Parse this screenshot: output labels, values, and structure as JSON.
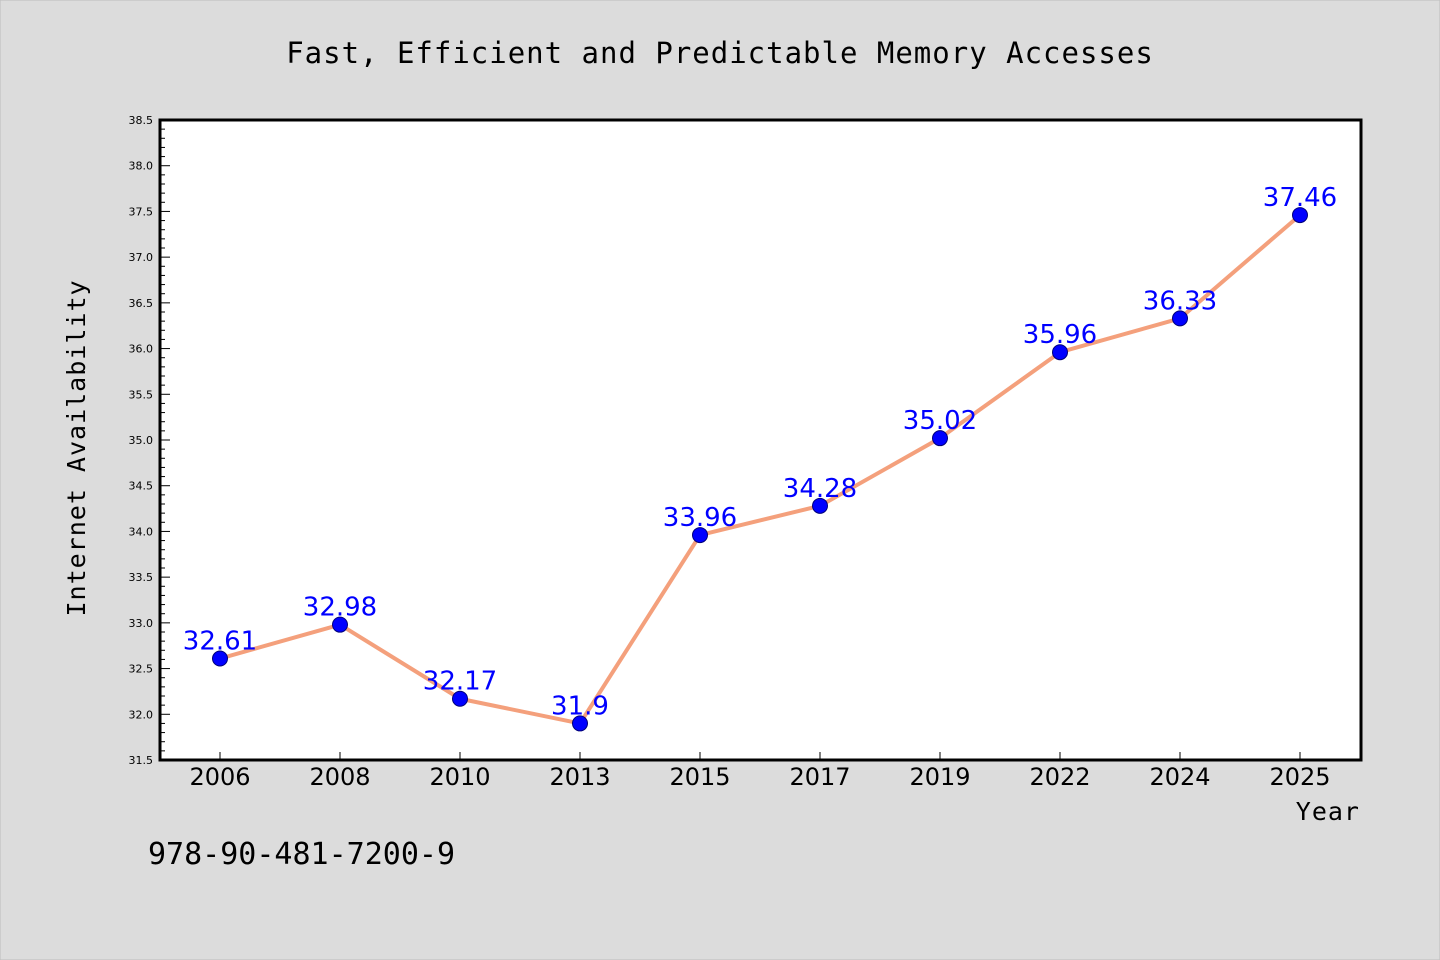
{
  "chart_data": {
    "type": "line",
    "title": "Fast, Efficient and Predictable Memory Accesses",
    "xlabel": "Year",
    "ylabel": "Internet Availability",
    "categories": [
      "2006",
      "2008",
      "2010",
      "2013",
      "2015",
      "2017",
      "2019",
      "2022",
      "2024",
      "2025"
    ],
    "series": [
      {
        "values": [
          32.61,
          32.98,
          32.17,
          31.9,
          33.96,
          34.28,
          35.02,
          35.96,
          36.33,
          37.46
        ],
        "line_color": "#f4a07c",
        "marker_color": "#0000ff",
        "label_color": "#0000ff"
      }
    ],
    "data_labels": [
      "32.61",
      "32.98",
      "32.17",
      "31.9",
      "33.96",
      "34.28",
      "35.02",
      "35.96",
      "36.33",
      "37.46"
    ],
    "ylim": [
      31.5,
      38.5
    ],
    "yticks": [
      "31.5",
      "32.0",
      "32.5",
      "33.0",
      "33.5",
      "34.0",
      "34.5",
      "35.0",
      "35.5",
      "36.0",
      "36.5",
      "37.0",
      "37.5",
      "38.0",
      "38.5"
    ],
    "grid": false,
    "legend": "none"
  },
  "footnote": "978-90-481-7200-9",
  "colors": {
    "background": "#dcdcdc",
    "plot_background": "#ffffff",
    "line": "#f4a07c",
    "marker": "#0000ff"
  }
}
